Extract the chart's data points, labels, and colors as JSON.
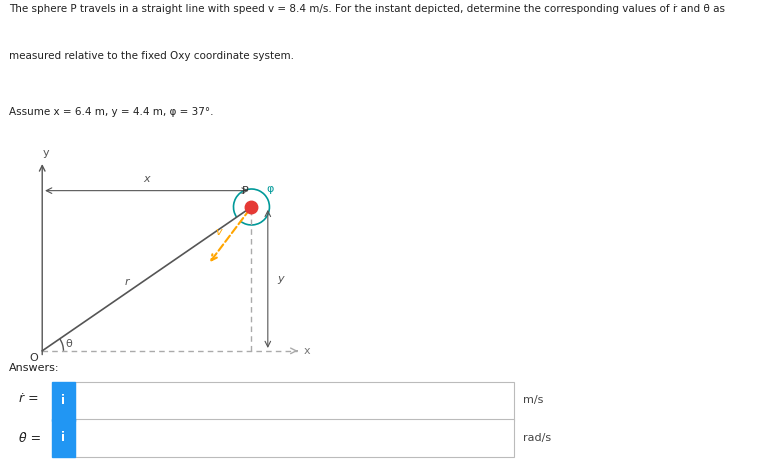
{
  "title_line1": "The sphere P travels in a straight line with speed v = 8.4 m/s. For the instant depicted, determine the corresponding values of ṙ and θ̇ as",
  "title_line2": "measured relative to the fixed Oxy coordinate system.",
  "assume_text": "Assume x = 6.4 m, y = 4.4 m, φ = 37°.",
  "answers_label": "Answers:",
  "rdot_label": "ṙ =",
  "thetadot_label": "θ̇ =",
  "rdot_unit": "m/s",
  "thetadot_unit": "rad/s",
  "input_button_color": "#2196F3",
  "input_button_text": "i",
  "background_color": "#ffffff",
  "diagram": {
    "O": [
      0.0,
      0.0
    ],
    "P": [
      6.4,
      4.4
    ],
    "phi_deg": 37,
    "r_color": "#555555",
    "v_color": "#FFA500",
    "rho_arc_color": "#009999",
    "P_color": "#E53935",
    "theta_arc_color": "#555555"
  }
}
